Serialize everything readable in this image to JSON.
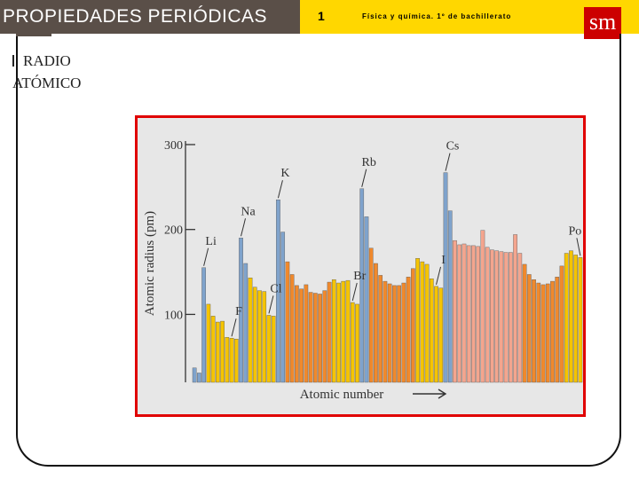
{
  "header": {
    "title": "PROPIEDADES PERIÓDICAS",
    "unit_number": "1",
    "subject": "Física y química. 1º de bachillerato",
    "logo_text": "sm"
  },
  "section": {
    "title_line1": "RADIO",
    "title_line2": "ATÓMICO"
  },
  "colors": {
    "header_bg": "#5a4f48",
    "header_band": "#ffd700",
    "logo_bg": "#cc0000",
    "chart_border": "#e00000",
    "alkali_blue": "#7fa3cc",
    "yellow": "#f5c400",
    "orange": "#f0892c",
    "salmon": "#f4a58e"
  },
  "chart_data": {
    "type": "bar",
    "title": "",
    "xlabel": "Atomic number",
    "ylabel": "Atomic radius (pm)",
    "ylim": [
      20,
      300
    ],
    "yticks": [
      100,
      200,
      300
    ],
    "grid": false,
    "x": [
      1,
      2,
      3,
      4,
      5,
      6,
      7,
      8,
      9,
      10,
      11,
      12,
      13,
      14,
      15,
      16,
      17,
      18,
      19,
      20,
      21,
      22,
      23,
      24,
      25,
      26,
      27,
      28,
      29,
      30,
      31,
      32,
      33,
      34,
      35,
      36,
      37,
      38,
      39,
      40,
      41,
      42,
      43,
      44,
      45,
      46,
      47,
      48,
      49,
      50,
      51,
      52,
      53,
      54,
      55,
      56,
      57,
      58,
      59,
      60,
      61,
      62,
      63,
      64,
      65,
      66,
      67,
      68,
      69,
      70,
      71,
      72,
      73,
      74,
      75,
      76,
      77,
      78,
      79,
      80,
      81,
      82,
      83,
      84
    ],
    "values": [
      37,
      31,
      155,
      112,
      98,
      91,
      92,
      73,
      72,
      71,
      190,
      160,
      143,
      132,
      128,
      127,
      99,
      98,
      235,
      197,
      162,
      147,
      134,
      130,
      135,
      126,
      125,
      124,
      128,
      138,
      141,
      137,
      139,
      140,
      114,
      112,
      248,
      215,
      178,
      160,
      146,
      139,
      136,
      134,
      134,
      137,
      144,
      154,
      166,
      162,
      159,
      142,
      133,
      131,
      267,
      222,
      187,
      182,
      183,
      181,
      181,
      180,
      199,
      179,
      176,
      175,
      174,
      173,
      173,
      194,
      172,
      159,
      147,
      141,
      137,
      135,
      136,
      139,
      144,
      157,
      172,
      175,
      170,
      167
    ],
    "groups": [
      "blue",
      "blue",
      "blue",
      "yellow",
      "yellow",
      "yellow",
      "yellow",
      "yellow",
      "yellow",
      "yellow",
      "blue",
      "blue",
      "yellow",
      "yellow",
      "yellow",
      "yellow",
      "yellow",
      "yellow",
      "blue",
      "blue",
      "orange",
      "orange",
      "orange",
      "orange",
      "orange",
      "orange",
      "orange",
      "orange",
      "orange",
      "orange",
      "yellow",
      "yellow",
      "yellow",
      "yellow",
      "yellow",
      "yellow",
      "blue",
      "blue",
      "orange",
      "orange",
      "orange",
      "orange",
      "orange",
      "orange",
      "orange",
      "orange",
      "orange",
      "orange",
      "yellow",
      "yellow",
      "yellow",
      "yellow",
      "yellow",
      "yellow",
      "blue",
      "blue",
      "salmon",
      "salmon",
      "salmon",
      "salmon",
      "salmon",
      "salmon",
      "salmon",
      "salmon",
      "salmon",
      "salmon",
      "salmon",
      "salmon",
      "salmon",
      "salmon",
      "salmon",
      "orange",
      "orange",
      "orange",
      "orange",
      "orange",
      "orange",
      "orange",
      "orange",
      "orange",
      "yellow",
      "yellow",
      "yellow",
      "yellow"
    ],
    "annotations": [
      {
        "text": "Li",
        "x": 3
      },
      {
        "text": "F",
        "x": 9
      },
      {
        "text": "Na",
        "x": 11
      },
      {
        "text": "Cl",
        "x": 17
      },
      {
        "text": "K",
        "x": 19
      },
      {
        "text": "Br",
        "x": 35
      },
      {
        "text": "Rb",
        "x": 37
      },
      {
        "text": "I",
        "x": 53
      },
      {
        "text": "Cs",
        "x": 55
      },
      {
        "text": "Po",
        "x": 84
      }
    ]
  }
}
